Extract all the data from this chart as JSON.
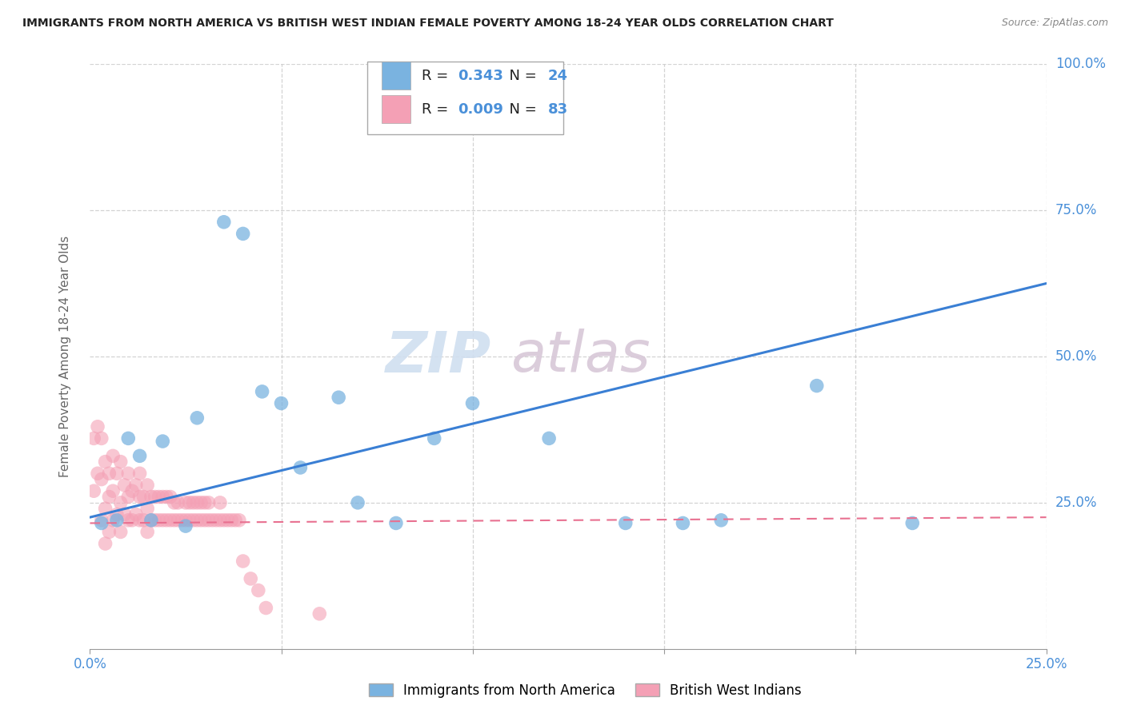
{
  "title": "IMMIGRANTS FROM NORTH AMERICA VS BRITISH WEST INDIAN FEMALE POVERTY AMONG 18-24 YEAR OLDS CORRELATION CHART",
  "source": "Source: ZipAtlas.com",
  "ylabel": "Female Poverty Among 18-24 Year Olds",
  "xlim": [
    0.0,
    0.25
  ],
  "ylim": [
    0.0,
    1.0
  ],
  "background_color": "#ffffff",
  "grid_color": "#c8c8c8",
  "blue_R": 0.343,
  "blue_N": 24,
  "pink_R": 0.009,
  "pink_N": 83,
  "blue_color": "#7ab3e0",
  "blue_edge": "#5a9fd4",
  "pink_color": "#f4a0b5",
  "pink_edge": "#e8809a",
  "line_blue": "#3a7fd4",
  "line_pink": "#e87090",
  "blue_x": [
    0.003,
    0.007,
    0.01,
    0.013,
    0.016,
    0.019,
    0.025,
    0.028,
    0.035,
    0.04,
    0.045,
    0.05,
    0.055,
    0.065,
    0.07,
    0.08,
    0.09,
    0.1,
    0.12,
    0.14,
    0.155,
    0.165,
    0.19,
    0.215
  ],
  "blue_y": [
    0.215,
    0.22,
    0.36,
    0.33,
    0.22,
    0.355,
    0.21,
    0.395,
    0.73,
    0.71,
    0.44,
    0.42,
    0.31,
    0.43,
    0.25,
    0.215,
    0.36,
    0.42,
    0.36,
    0.215,
    0.215,
    0.22,
    0.45,
    0.215
  ],
  "pink_x": [
    0.001,
    0.001,
    0.002,
    0.002,
    0.003,
    0.003,
    0.003,
    0.004,
    0.004,
    0.004,
    0.005,
    0.005,
    0.005,
    0.006,
    0.006,
    0.006,
    0.007,
    0.007,
    0.008,
    0.008,
    0.008,
    0.009,
    0.009,
    0.01,
    0.01,
    0.01,
    0.011,
    0.011,
    0.012,
    0.012,
    0.013,
    0.013,
    0.013,
    0.014,
    0.014,
    0.015,
    0.015,
    0.015,
    0.016,
    0.016,
    0.017,
    0.017,
    0.018,
    0.018,
    0.019,
    0.019,
    0.02,
    0.02,
    0.021,
    0.021,
    0.022,
    0.022,
    0.023,
    0.023,
    0.024,
    0.025,
    0.025,
    0.026,
    0.026,
    0.027,
    0.027,
    0.028,
    0.028,
    0.029,
    0.029,
    0.03,
    0.03,
    0.031,
    0.031,
    0.032,
    0.033,
    0.034,
    0.034,
    0.035,
    0.036,
    0.037,
    0.038,
    0.039,
    0.04,
    0.042,
    0.044,
    0.046,
    0.06
  ],
  "pink_y": [
    0.27,
    0.36,
    0.3,
    0.38,
    0.22,
    0.29,
    0.36,
    0.18,
    0.24,
    0.32,
    0.2,
    0.26,
    0.3,
    0.22,
    0.27,
    0.33,
    0.23,
    0.3,
    0.2,
    0.25,
    0.32,
    0.23,
    0.28,
    0.22,
    0.26,
    0.3,
    0.22,
    0.27,
    0.23,
    0.28,
    0.22,
    0.26,
    0.3,
    0.22,
    0.26,
    0.2,
    0.24,
    0.28,
    0.22,
    0.26,
    0.22,
    0.26,
    0.22,
    0.26,
    0.22,
    0.26,
    0.22,
    0.26,
    0.22,
    0.26,
    0.22,
    0.25,
    0.22,
    0.25,
    0.22,
    0.22,
    0.25,
    0.22,
    0.25,
    0.22,
    0.25,
    0.22,
    0.25,
    0.22,
    0.25,
    0.22,
    0.25,
    0.22,
    0.25,
    0.22,
    0.22,
    0.22,
    0.25,
    0.22,
    0.22,
    0.22,
    0.22,
    0.22,
    0.15,
    0.12,
    0.1,
    0.07,
    0.06
  ],
  "legend_labels": [
    "Immigrants from North America",
    "British West Indians"
  ],
  "watermark_zip": "ZIP",
  "watermark_atlas": "atlas"
}
